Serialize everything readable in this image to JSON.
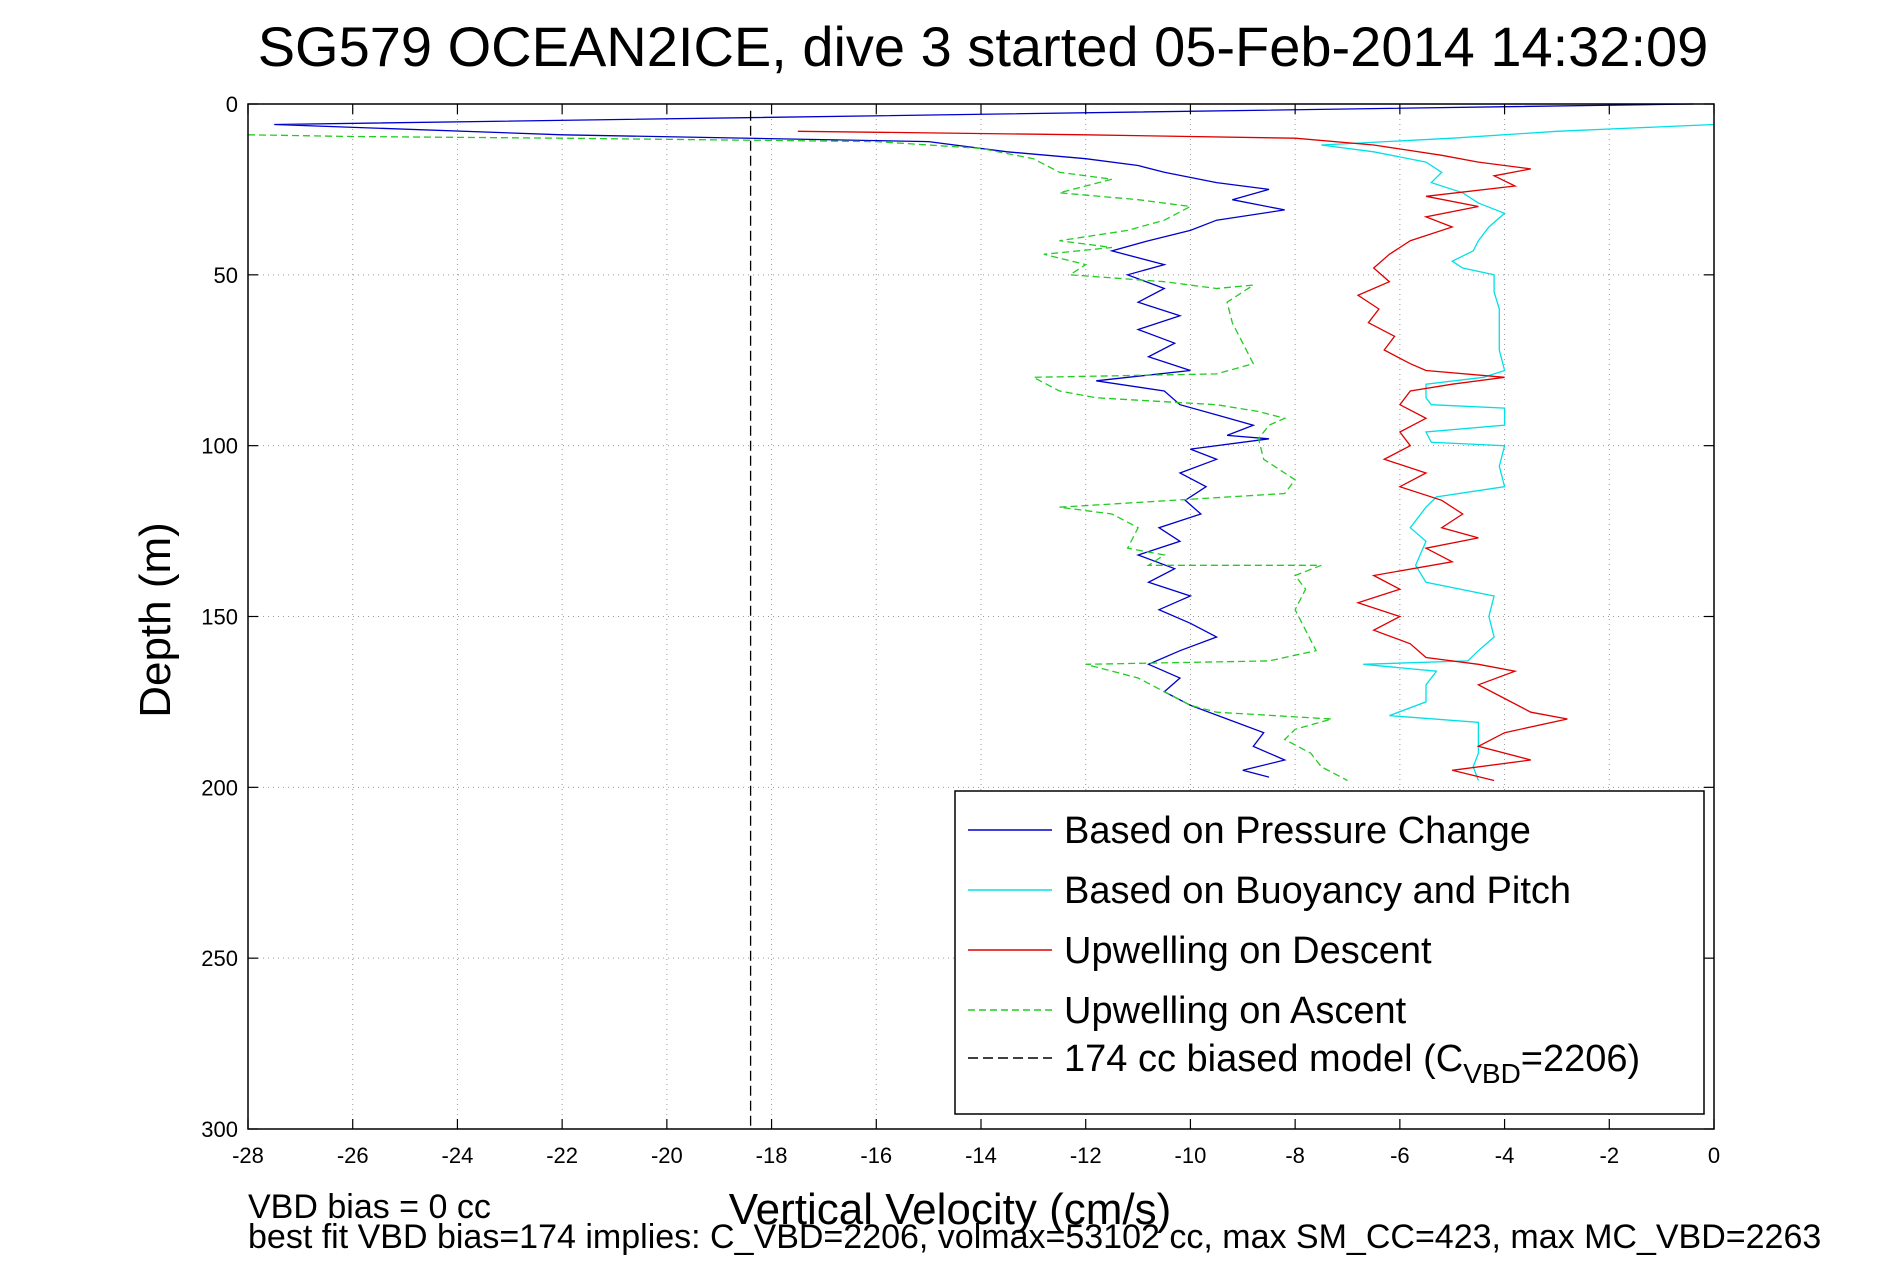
{
  "chart_data": {
    "type": "line",
    "title": "SG579 OCEAN2ICE, dive 3 started 05-Feb-2014 14:32:09",
    "xlabel": "Vertical Velocity (cm/s)",
    "ylabel": "Depth (m)",
    "xlim": [
      -28,
      0
    ],
    "ylim": [
      0,
      300
    ],
    "y_reversed": true,
    "grid": true,
    "legend_position": "bottom-right",
    "x_ticks": [
      "-28",
      "-26",
      "-24",
      "-22",
      "-20",
      "-18",
      "-16",
      "-14",
      "-12",
      "-10",
      "-8",
      "-6",
      "-4",
      "-2",
      "0"
    ],
    "y_ticks": [
      "0",
      "50",
      "100",
      "150",
      "200",
      "250",
      "300"
    ],
    "series": [
      {
        "name": "Based on Pressure Change",
        "color": "#0000cc",
        "dash": "solid",
        "points": [
          [
            -0.4,
            0
          ],
          [
            -27.5,
            6
          ],
          [
            -22,
            9
          ],
          [
            -15,
            11
          ],
          [
            -13.5,
            14
          ],
          [
            -12,
            16
          ],
          [
            -11,
            18
          ],
          [
            -10.5,
            20
          ],
          [
            -9.5,
            23
          ],
          [
            -8.5,
            25
          ],
          [
            -9.2,
            28
          ],
          [
            -8.2,
            31
          ],
          [
            -9.5,
            34
          ],
          [
            -10,
            37
          ],
          [
            -10.8,
            40
          ],
          [
            -11.5,
            43
          ],
          [
            -10.5,
            47
          ],
          [
            -11.2,
            50
          ],
          [
            -10.5,
            54
          ],
          [
            -11,
            58
          ],
          [
            -10.2,
            62
          ],
          [
            -11,
            66
          ],
          [
            -10.3,
            70
          ],
          [
            -10.8,
            74
          ],
          [
            -10,
            78
          ],
          [
            -11.8,
            81
          ],
          [
            -10.5,
            84
          ],
          [
            -10.2,
            88
          ],
          [
            -9.5,
            91
          ],
          [
            -8.8,
            94
          ],
          [
            -9.3,
            97
          ],
          [
            -8.5,
            98
          ],
          [
            -10,
            101
          ],
          [
            -9.5,
            104
          ],
          [
            -10.2,
            108
          ],
          [
            -9.7,
            112
          ],
          [
            -10.1,
            116
          ],
          [
            -9.8,
            120
          ],
          [
            -10.6,
            124
          ],
          [
            -10.2,
            128
          ],
          [
            -11,
            132
          ],
          [
            -10.3,
            136
          ],
          [
            -10.8,
            140
          ],
          [
            -10,
            144
          ],
          [
            -10.6,
            148
          ],
          [
            -10,
            152
          ],
          [
            -9.5,
            156
          ],
          [
            -10.2,
            160
          ],
          [
            -10.8,
            164
          ],
          [
            -10.2,
            168
          ],
          [
            -10.5,
            172
          ],
          [
            -10,
            176
          ],
          [
            -9.3,
            180
          ],
          [
            -8.6,
            184
          ],
          [
            -8.8,
            188
          ],
          [
            -8.2,
            192
          ],
          [
            -9,
            195
          ],
          [
            -8.5,
            197
          ]
        ]
      },
      {
        "name": "Based on Buoyancy and Pitch",
        "color": "#00e0e6",
        "dash": "solid",
        "points": [
          [
            0,
            6
          ],
          [
            -1.5,
            7
          ],
          [
            -3,
            8
          ],
          [
            -5,
            10
          ],
          [
            -7.5,
            12
          ],
          [
            -6.5,
            14
          ],
          [
            -5.5,
            17
          ],
          [
            -5.2,
            20
          ],
          [
            -5.4,
            23
          ],
          [
            -4.8,
            26
          ],
          [
            -4.5,
            29
          ],
          [
            -4,
            32
          ],
          [
            -4.3,
            36
          ],
          [
            -4.5,
            40
          ],
          [
            -4.6,
            43
          ],
          [
            -5,
            46
          ],
          [
            -4.8,
            48
          ],
          [
            -4.2,
            50
          ],
          [
            -4.2,
            55
          ],
          [
            -4.1,
            60
          ],
          [
            -4.1,
            66
          ],
          [
            -4.1,
            72
          ],
          [
            -4,
            78
          ],
          [
            -4.4,
            80
          ],
          [
            -5.5,
            82
          ],
          [
            -5.5,
            86
          ],
          [
            -5.4,
            88
          ],
          [
            -4,
            89
          ],
          [
            -4,
            94
          ],
          [
            -5.5,
            96
          ],
          [
            -5.4,
            99
          ],
          [
            -4,
            100
          ],
          [
            -4.1,
            106
          ],
          [
            -4,
            112
          ],
          [
            -5.3,
            115
          ],
          [
            -5.5,
            118
          ],
          [
            -5.8,
            124
          ],
          [
            -5.5,
            128
          ],
          [
            -5.7,
            135
          ],
          [
            -5.5,
            140
          ],
          [
            -4.2,
            144
          ],
          [
            -4.3,
            150
          ],
          [
            -4.2,
            156
          ],
          [
            -4.5,
            160
          ],
          [
            -4.7,
            163
          ],
          [
            -6.7,
            164
          ],
          [
            -5.3,
            166
          ],
          [
            -5.5,
            170
          ],
          [
            -5.5,
            175
          ],
          [
            -6.2,
            179
          ],
          [
            -4.5,
            181
          ],
          [
            -4.5,
            186
          ],
          [
            -4.5,
            190
          ],
          [
            -4.6,
            194
          ],
          [
            -4.5,
            198
          ]
        ]
      },
      {
        "name": "Upwelling on Descent",
        "color": "#e00000",
        "dash": "solid",
        "points": [
          [
            -17.5,
            8
          ],
          [
            -12,
            9
          ],
          [
            -8,
            10
          ],
          [
            -6.5,
            12
          ],
          [
            -5.2,
            15
          ],
          [
            -4.5,
            17
          ],
          [
            -3.5,
            19
          ],
          [
            -4.2,
            21
          ],
          [
            -3.8,
            24
          ],
          [
            -5.5,
            27
          ],
          [
            -4.5,
            30
          ],
          [
            -5.5,
            33
          ],
          [
            -5,
            36
          ],
          [
            -5.8,
            40
          ],
          [
            -6.2,
            44
          ],
          [
            -6.5,
            48
          ],
          [
            -6.2,
            52
          ],
          [
            -6.8,
            56
          ],
          [
            -6.4,
            60
          ],
          [
            -6.6,
            64
          ],
          [
            -6.1,
            68
          ],
          [
            -6.3,
            72
          ],
          [
            -5.8,
            76
          ],
          [
            -5.5,
            78
          ],
          [
            -4,
            80
          ],
          [
            -5,
            82
          ],
          [
            -5.8,
            84
          ],
          [
            -6,
            88
          ],
          [
            -5.5,
            92
          ],
          [
            -6,
            96
          ],
          [
            -5.8,
            100
          ],
          [
            -6.3,
            104
          ],
          [
            -5.5,
            108
          ],
          [
            -6,
            112
          ],
          [
            -5.2,
            116
          ],
          [
            -4.8,
            120
          ],
          [
            -5.2,
            124
          ],
          [
            -4.5,
            127
          ],
          [
            -5.5,
            130
          ],
          [
            -5,
            134
          ],
          [
            -6.5,
            138
          ],
          [
            -6,
            142
          ],
          [
            -6.8,
            146
          ],
          [
            -6,
            150
          ],
          [
            -6.5,
            154
          ],
          [
            -5.8,
            158
          ],
          [
            -5.5,
            162
          ],
          [
            -4.5,
            164
          ],
          [
            -3.8,
            166
          ],
          [
            -4.5,
            170
          ],
          [
            -4,
            174
          ],
          [
            -3.5,
            178
          ],
          [
            -2.8,
            180
          ],
          [
            -4,
            184
          ],
          [
            -4.5,
            188
          ],
          [
            -3.5,
            192
          ],
          [
            -5,
            195
          ],
          [
            -4.2,
            198
          ]
        ]
      },
      {
        "name": "Upwelling on Ascent",
        "color": "#22cc22",
        "dash": "dashed",
        "points": [
          [
            -28,
            9
          ],
          [
            -26,
            9.5
          ],
          [
            -22,
            10
          ],
          [
            -16,
            11
          ],
          [
            -14,
            13
          ],
          [
            -13,
            16
          ],
          [
            -12.5,
            20
          ],
          [
            -11.5,
            22
          ],
          [
            -12.5,
            26
          ],
          [
            -11,
            28
          ],
          [
            -10,
            30
          ],
          [
            -10.5,
            34
          ],
          [
            -11.2,
            37
          ],
          [
            -12.5,
            40
          ],
          [
            -11.5,
            42
          ],
          [
            -12.8,
            44
          ],
          [
            -12,
            47
          ],
          [
            -12.3,
            50
          ],
          [
            -10.5,
            52
          ],
          [
            -9.5,
            54
          ],
          [
            -8.8,
            53
          ],
          [
            -9.3,
            58
          ],
          [
            -9.2,
            64
          ],
          [
            -9,
            70
          ],
          [
            -8.8,
            76
          ],
          [
            -9.5,
            79
          ],
          [
            -13,
            80
          ],
          [
            -12.5,
            84
          ],
          [
            -11.8,
            86
          ],
          [
            -9.5,
            88
          ],
          [
            -8.7,
            90
          ],
          [
            -8.2,
            92
          ],
          [
            -8.5,
            94
          ],
          [
            -8.7,
            98
          ],
          [
            -8.6,
            104
          ],
          [
            -8,
            110
          ],
          [
            -8.2,
            114
          ],
          [
            -12.5,
            118
          ],
          [
            -11.5,
            120
          ],
          [
            -11,
            124
          ],
          [
            -11.2,
            130
          ],
          [
            -10.5,
            132
          ],
          [
            -10.8,
            135
          ],
          [
            -7.5,
            135
          ],
          [
            -8,
            138
          ],
          [
            -7.8,
            142
          ],
          [
            -8,
            148
          ],
          [
            -7.8,
            154
          ],
          [
            -7.6,
            160
          ],
          [
            -8.5,
            163
          ],
          [
            -12,
            164
          ],
          [
            -11,
            168
          ],
          [
            -10.5,
            172
          ],
          [
            -10,
            176
          ],
          [
            -9.5,
            178
          ],
          [
            -7.3,
            180
          ],
          [
            -8,
            183
          ],
          [
            -8.2,
            186
          ],
          [
            -7.7,
            190
          ],
          [
            -7.5,
            194
          ],
          [
            -7,
            198
          ]
        ]
      },
      {
        "name": "174 cc biased model (CVBD=2206)",
        "color": "#000000",
        "dash": "dashdot",
        "points": [
          [
            -18.4,
            2
          ],
          [
            -18.4,
            300
          ]
        ]
      }
    ],
    "legend_entries": [
      {
        "prefix": "Based on Pressure Change",
        "sub": "",
        "suffix": ""
      },
      {
        "prefix": "Based on Buoyancy and Pitch",
        "sub": "",
        "suffix": ""
      },
      {
        "prefix": "Upwelling on Descent",
        "sub": "",
        "suffix": ""
      },
      {
        "prefix": "Upwelling on Ascent",
        "sub": "",
        "suffix": ""
      },
      {
        "prefix": "174 cc biased model (C",
        "sub": "VBD",
        "suffix": "=2206)"
      }
    ],
    "annotations": [
      "VBD bias = 0 cc",
      "best fit VBD bias=174 implies: C_VBD=2206, volmax=53102 cc, max SM_CC=423, max MC_VBD=2263"
    ]
  }
}
